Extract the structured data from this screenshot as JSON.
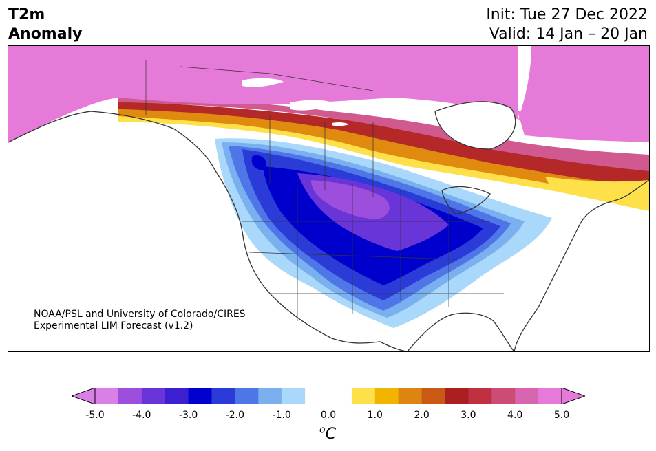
{
  "title": {
    "left_line1": "T2m",
    "left_line2": "Anomaly",
    "right_line1": "Init: Tue 27 Dec 2022",
    "right_line2": "Valid: 14 Jan – 20 Jan"
  },
  "credit": {
    "line1": "NOAA/PSL and University of Colorado/CIRES",
    "line2": "Experimental LIM Forecast (v1.2)"
  },
  "colorbar": {
    "unit_label": "oC",
    "tick_labels": [
      "-5.0",
      "-4.0",
      "-3.0",
      "-2.0",
      "-1.0",
      "0.0",
      "1.0",
      "2.0",
      "3.0",
      "4.0",
      "5.0"
    ],
    "colors": [
      "#d980e6",
      "#9b4fdc",
      "#6a35d8",
      "#3b1fd0",
      "#0000cc",
      "#2a3bd8",
      "#4f76e6",
      "#7ab0f0",
      "#aad8fa",
      "#ffffff",
      "#ffffff",
      "#fde04a",
      "#f1b400",
      "#dd8510",
      "#c85a14",
      "#aa2020",
      "#c03040",
      "#cc4c74",
      "#d865b0",
      "#e67ad8"
    ],
    "extend_min_color": "#d980e6",
    "extend_max_color": "#e67ad8"
  },
  "map": {
    "region": "North America",
    "variable": "2-meter temperature anomaly",
    "colors": {
      "warm_pink": "#e67ad8",
      "warm_rose": "#d05a90",
      "warm_red": "#b42828",
      "warm_orange": "#e08a10",
      "warm_yellow": "#fde04a",
      "cold_lightblue": "#aad8fa",
      "cold_sky": "#7ab0f0",
      "cold_blue": "#4f76e6",
      "cold_mid": "#2a3bd8",
      "cold_deep": "#0000cc",
      "cold_violet": "#6a35d8",
      "cold_purple": "#9b4fdc",
      "coast": "#333333"
    }
  }
}
